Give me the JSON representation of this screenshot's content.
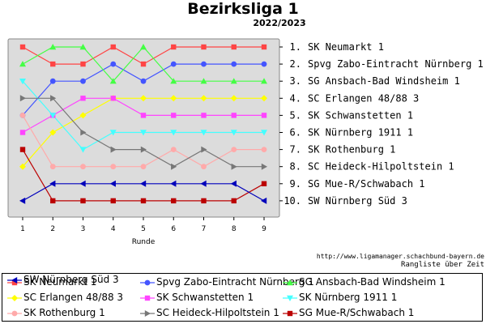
{
  "chart_data": {
    "type": "line",
    "title": "Bezirksliga 1",
    "subtitle": "2022/2023",
    "xlabel": "Runde",
    "x": [
      1,
      2,
      3,
      4,
      5,
      6,
      7,
      8,
      9
    ],
    "y_ticks": [
      "1.",
      "2.",
      "3.",
      "4.",
      "5.",
      "6.",
      "7.",
      "8.",
      "9.",
      "10."
    ],
    "ylim": [
      1,
      10
    ],
    "y_inverted": true,
    "grid": false,
    "legend_position": "bottom",
    "right_labels": [
      "SK Neumarkt 1",
      "Spvg Zabo-Eintracht Nürnberg 1",
      "SG Ansbach-Bad Windsheim 1",
      "SC Erlangen 48/88 3",
      "SK Schwanstetten 1",
      "SK Nürnberg 1911 1",
      "SK Rothenburg 1",
      "SC Heideck-Hilpoltstein 1",
      "SG Mue-R/Schwabach 1",
      "SW Nürnberg Süd 3"
    ],
    "series": [
      {
        "name": "SK Neumarkt 1",
        "color": "#ff4444",
        "marker": "square",
        "values": [
          1,
          2,
          2,
          1,
          2,
          1,
          1,
          1,
          1
        ]
      },
      {
        "name": "Spvg Zabo-Eintracht Nürnberg 1",
        "color": "#4455ff",
        "marker": "circle",
        "values": [
          5,
          3,
          3,
          2,
          3,
          2,
          2,
          2,
          2
        ]
      },
      {
        "name": "SG Ansbach-Bad Windsheim 1",
        "color": "#44ff44",
        "marker": "triangle-up",
        "values": [
          2,
          1,
          1,
          3,
          1,
          3,
          3,
          3,
          3
        ]
      },
      {
        "name": "SC Erlangen 48/88 3",
        "color": "#ffff00",
        "marker": "diamond",
        "values": [
          8,
          6,
          5,
          4,
          4,
          4,
          4,
          4,
          4
        ]
      },
      {
        "name": "SK Schwanstetten 1",
        "color": "#ff44ff",
        "marker": "square",
        "values": [
          6,
          5,
          4,
          4,
          5,
          5,
          5,
          5,
          5
        ]
      },
      {
        "name": "SK Nürnberg 1911 1",
        "color": "#44ffff",
        "marker": "triangle-down",
        "values": [
          3,
          5,
          7,
          6,
          6,
          6,
          6,
          6,
          6
        ]
      },
      {
        "name": "SK Rothenburg 1",
        "color": "#ffaaaa",
        "marker": "circle",
        "values": [
          5,
          8,
          8,
          8,
          8,
          7,
          8,
          7,
          7
        ]
      },
      {
        "name": "SC Heideck-Hilpoltstein 1",
        "color": "#777777",
        "marker": "triangle-right",
        "values": [
          4,
          4,
          6,
          7,
          7,
          8,
          7,
          8,
          8
        ]
      },
      {
        "name": "SG Mue-R/Schwabach 1",
        "color": "#bb0000",
        "marker": "square",
        "values": [
          7,
          10,
          10,
          10,
          10,
          10,
          10,
          10,
          9
        ]
      },
      {
        "name": "SW Nürnberg Süd 3",
        "color": "#0000bb",
        "marker": "triangle-left",
        "values": [
          10,
          9,
          9,
          9,
          9,
          9,
          9,
          9,
          10
        ]
      }
    ]
  },
  "footer": {
    "url": "http://www.ligamanager.schachbund-bayern.de",
    "caption": "Rangliste über Zeit"
  }
}
